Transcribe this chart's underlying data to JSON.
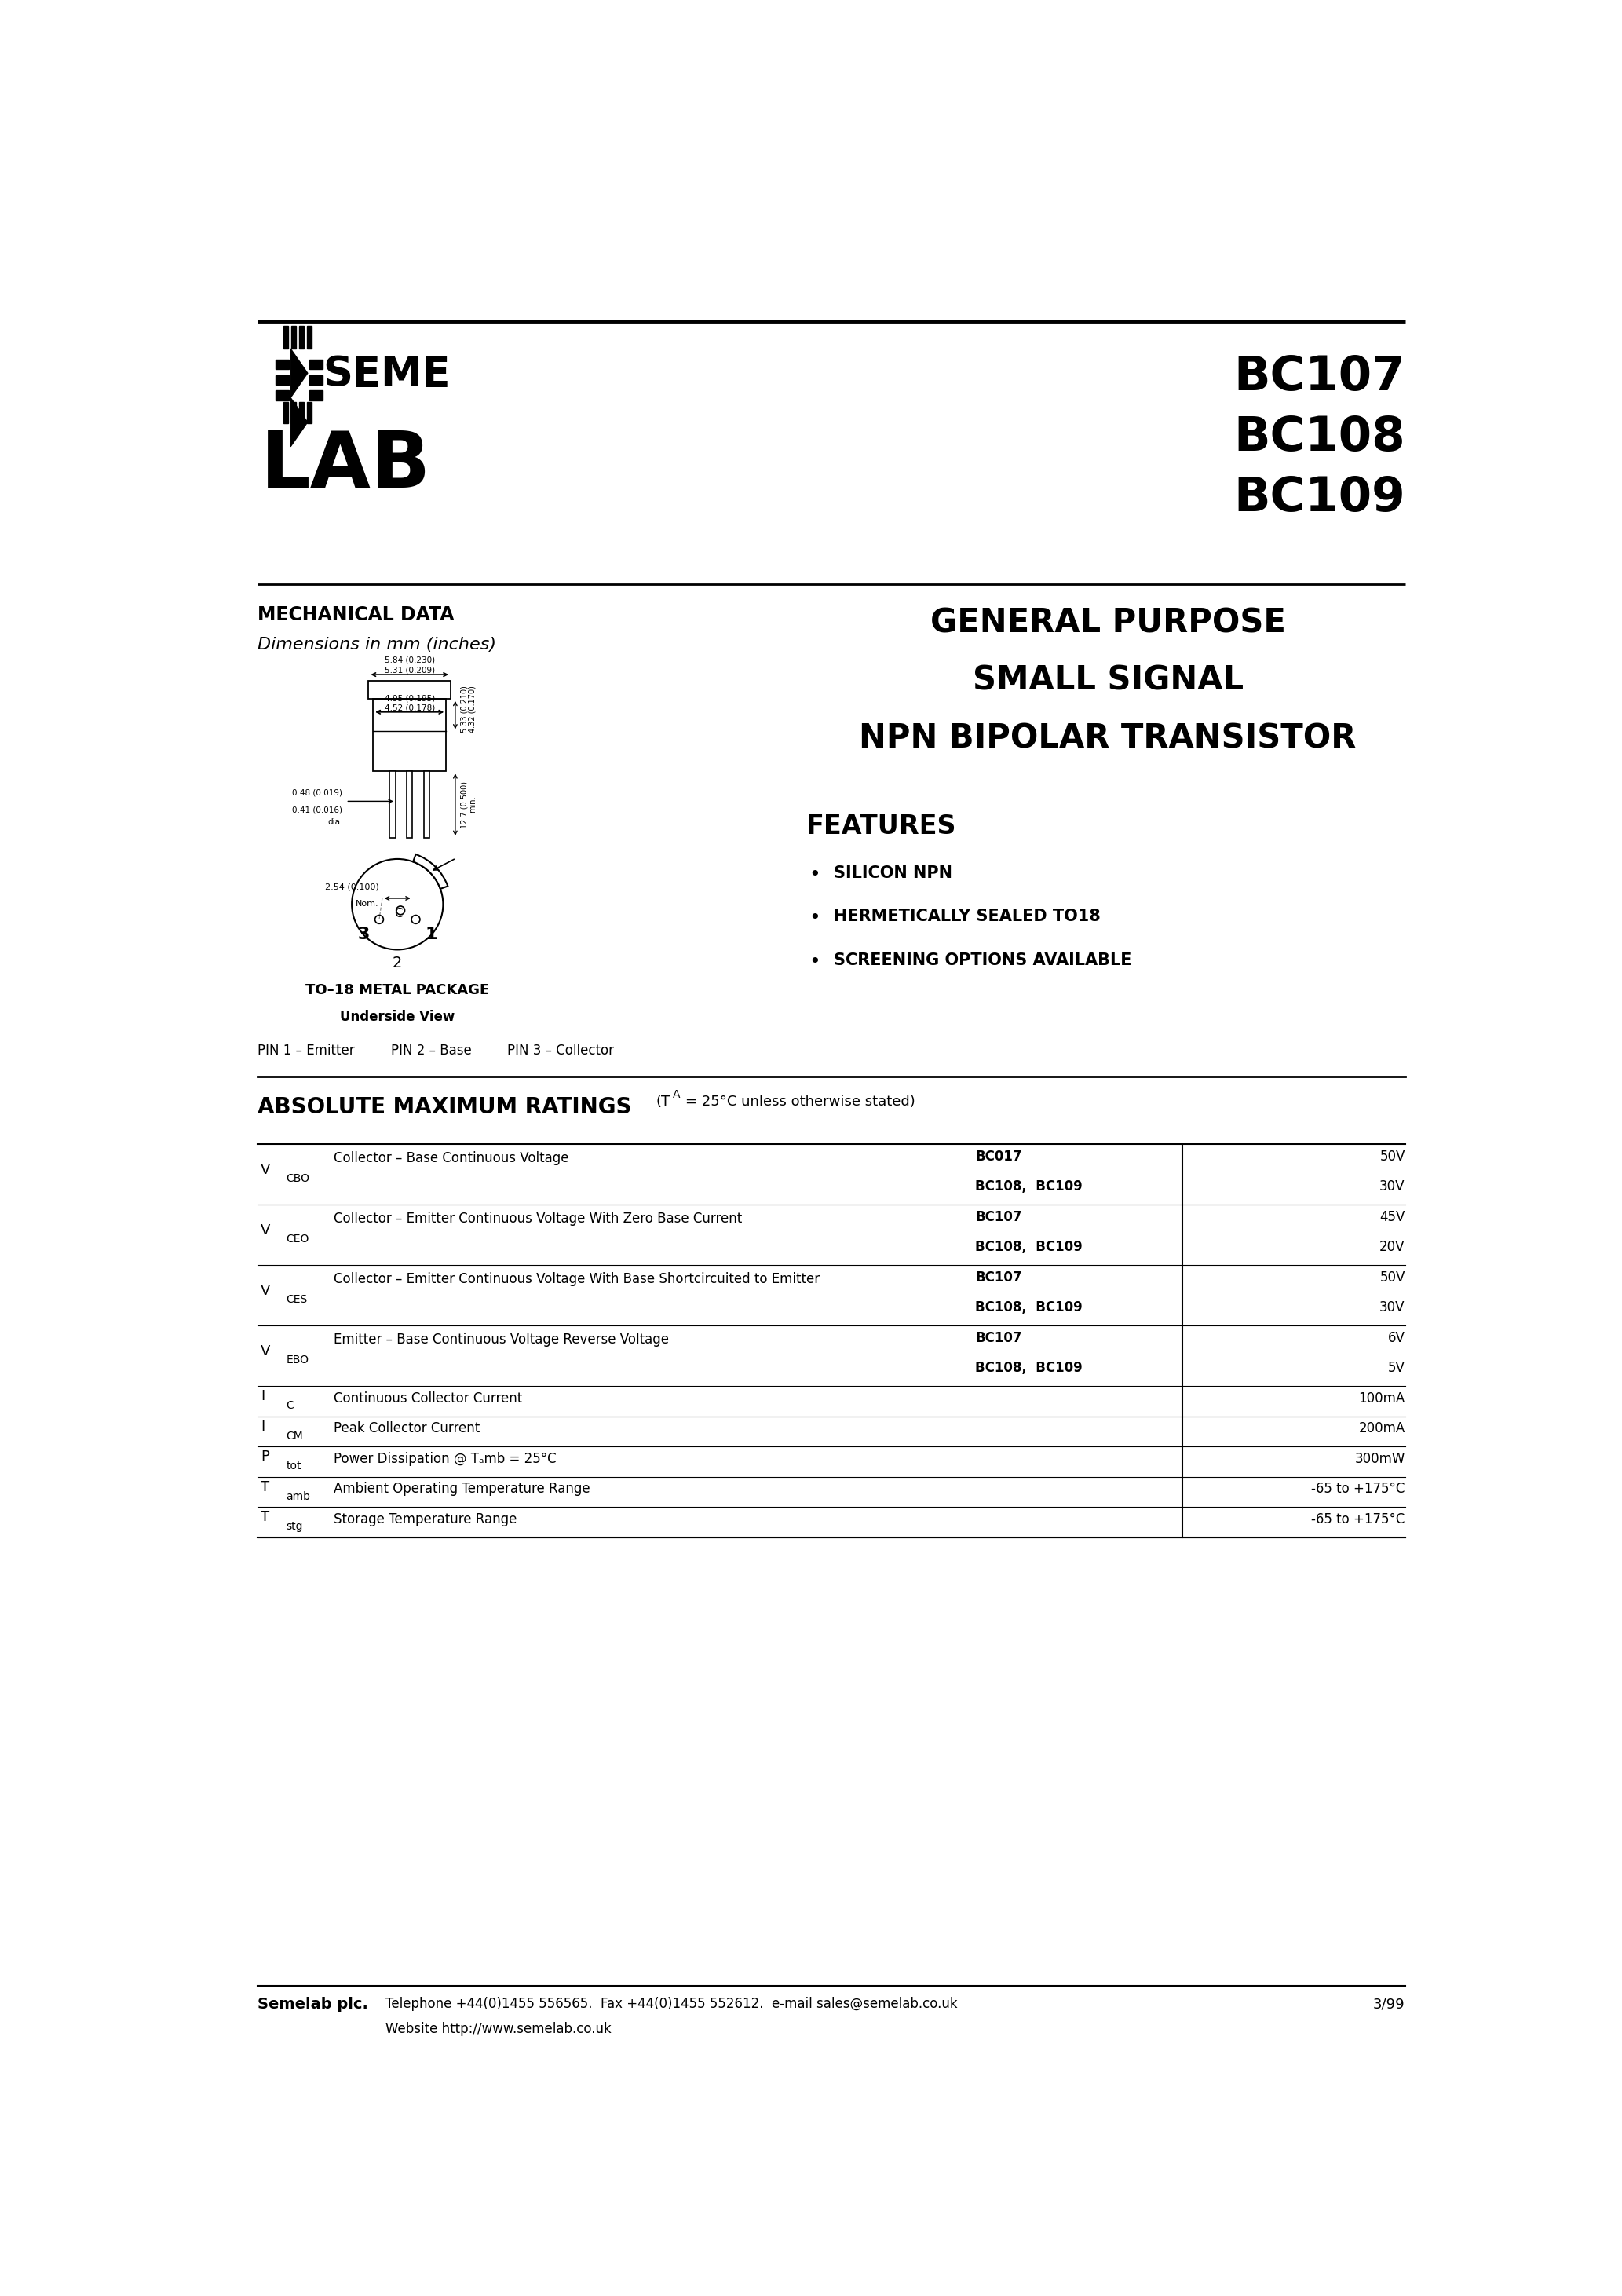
{
  "page_bg": "#ffffff",
  "text_color": "#000000",
  "part_numbers": [
    "BC107",
    "BC108",
    "BC109"
  ],
  "section1_title": "MECHANICAL DATA",
  "section1_subtitle": "Dimensions in mm (inches)",
  "features_title": "FEATURES",
  "features": [
    "SILICON NPN",
    "HERMETICALLY SEALED TO18",
    "SCREENING OPTIONS AVAILABLE"
  ],
  "package_title": "TO–18 METAL PACKAGE",
  "package_subtitle": "Underside View",
  "footer_company": "Semelab plc.",
  "footer_contact": "Telephone +44(0)1455 556565.  Fax +44(0)1455 552612.  e-mail sales@semelab.co.uk",
  "footer_website": "Website http://www.semelab.co.uk",
  "footer_date": "3/99",
  "row_data": [
    [
      "V",
      "CBO",
      "Collector – Base Continuous Voltage",
      [
        [
          "BC017",
          "50V"
        ],
        [
          "BC108,  BC109",
          "30V"
        ]
      ]
    ],
    [
      "V",
      "CEO",
      "Collector – Emitter Continuous Voltage With Zero Base Current",
      [
        [
          "BC107",
          "45V"
        ],
        [
          "BC108,  BC109",
          "20V"
        ]
      ]
    ],
    [
      "V",
      "CES",
      "Collector – Emitter Continuous Voltage With Base Shortcircuited to Emitter",
      [
        [
          "BC107",
          "50V"
        ],
        [
          "BC108,  BC109",
          "30V"
        ]
      ]
    ],
    [
      "V",
      "EBO",
      "Emitter – Base Continuous Voltage Reverse Voltage",
      [
        [
          "BC107",
          "6V"
        ],
        [
          "BC108,  BC109",
          "5V"
        ]
      ]
    ],
    [
      "I",
      "C",
      "Continuous Collector Current",
      [
        [
          "",
          "100mA"
        ]
      ]
    ],
    [
      "I",
      "CM",
      "Peak Collector Current",
      [
        [
          "",
          "200mA"
        ]
      ]
    ],
    [
      "P",
      "tot",
      "Power Dissipation @ Tₐmb = 25°C",
      [
        [
          "",
          "300mW"
        ]
      ]
    ],
    [
      "T",
      "amb",
      "Ambient Operating Temperature Range",
      [
        [
          "",
          "-65 to +175°C"
        ]
      ]
    ],
    [
      "T",
      "stg",
      "Storage Temperature Range",
      [
        [
          "",
          "-65 to +175°C"
        ]
      ]
    ]
  ]
}
